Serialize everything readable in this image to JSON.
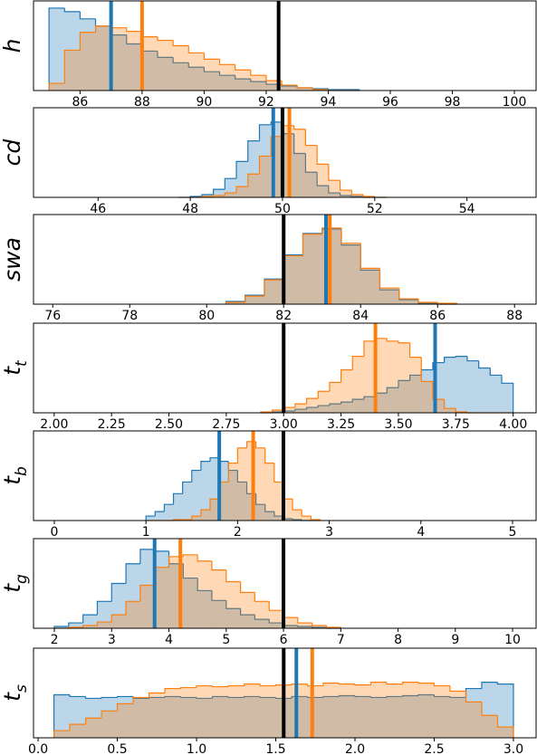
{
  "chart_data": [
    {
      "type": "histogram",
      "ylabel": "h",
      "xlim": [
        84.5,
        100.7
      ],
      "ylim": [
        0,
        100
      ],
      "xticks": [
        86,
        88,
        90,
        92,
        94,
        96,
        98,
        100
      ],
      "bins": [
        85,
        85.5,
        86,
        86.5,
        87,
        87.5,
        88,
        88.5,
        89,
        89.5,
        90,
        90.5,
        91,
        91.5,
        92,
        92.5,
        93,
        93.5,
        94,
        94.5,
        95
      ],
      "series": [
        {
          "color": "#1f77b4",
          "values": [
            92,
            88,
            80,
            72,
            62,
            52,
            44,
            37,
            31,
            26,
            21,
            17,
            13,
            10,
            7,
            5,
            3,
            2,
            1,
            1
          ]
        },
        {
          "color": "#ff7f0e",
          "values": [
            8,
            45,
            65,
            72,
            70,
            66,
            60,
            56,
            50,
            42,
            35,
            29,
            23,
            17,
            11,
            6,
            3,
            1,
            0,
            0
          ]
        }
      ],
      "vlines": [
        {
          "x": 87.0,
          "color": "#1f77b4"
        },
        {
          "x": 88.0,
          "color": "#ff7f0e"
        },
        {
          "x": 92.4,
          "color": "#000000"
        }
      ]
    },
    {
      "type": "histogram",
      "ylabel": "cd",
      "xlim": [
        44.6,
        55.5
      ],
      "ylim": [
        0,
        100
      ],
      "xticks": [
        46,
        48,
        50,
        52,
        54
      ],
      "bins": [
        47.75,
        48,
        48.25,
        48.5,
        48.75,
        49,
        49.25,
        49.5,
        49.75,
        50,
        50.25,
        50.5,
        50.75,
        51,
        51.25,
        51.5,
        51.75,
        52,
        52.25
      ],
      "series": [
        {
          "color": "#1f77b4",
          "values": [
            0,
            1,
            3,
            9,
            21,
            40,
            63,
            81,
            84,
            71,
            49,
            28,
            13,
            5,
            2,
            1,
            0,
            0
          ]
        },
        {
          "color": "#ff7f0e",
          "values": [
            0,
            0,
            1,
            2,
            5,
            12,
            26,
            46,
            68,
            80,
            76,
            58,
            37,
            19,
            8,
            3,
            1,
            0
          ]
        }
      ],
      "vlines": [
        {
          "x": 49.8,
          "color": "#1f77b4"
        },
        {
          "x": 50.15,
          "color": "#ff7f0e"
        },
        {
          "x": 50.0,
          "color": "#000000"
        }
      ]
    },
    {
      "type": "histogram",
      "ylabel": "swa",
      "xlim": [
        75.5,
        88.56
      ],
      "ylim": [
        0,
        100
      ],
      "xticks": [
        76,
        78,
        80,
        82,
        84,
        86,
        88
      ],
      "bins": [
        80.5,
        81,
        81.5,
        82,
        82.5,
        83,
        83.5,
        84,
        84.5,
        85,
        85.5,
        86,
        86.5
      ],
      "series": [
        {
          "color": "#1f77b4",
          "values": [
            3,
            10,
            28,
            55,
            79,
            84,
            66,
            38,
            16,
            5,
            1,
            0
          ]
        },
        {
          "color": "#ff7f0e",
          "values": [
            2,
            9,
            27,
            54,
            78,
            85,
            68,
            40,
            18,
            6,
            2,
            1
          ]
        }
      ],
      "vlines": [
        {
          "x": 82.0,
          "color": "#000000"
        },
        {
          "x": 83.1,
          "color": "#1f77b4"
        },
        {
          "x": 83.2,
          "color": "#ff7f0e"
        }
      ]
    },
    {
      "type": "histogram",
      "ylabel": "t",
      "ylabel_subscript": "t",
      "xlim": [
        1.91,
        4.1
      ],
      "ylim": [
        0,
        100
      ],
      "xticks": [
        {
          "value": 2,
          "label": "2.00"
        },
        2.25,
        {
          "value": 2.5,
          "label": "2.50"
        },
        2.75,
        {
          "value": 3,
          "label": "3.00"
        },
        3.25,
        {
          "value": 3.5,
          "label": "3.50"
        },
        3.75,
        {
          "value": 4,
          "label": "4.00"
        }
      ],
      "bins": [
        2.9,
        2.95,
        3.0,
        3.05,
        3.1,
        3.15,
        3.2,
        3.25,
        3.3,
        3.35,
        3.4,
        3.45,
        3.5,
        3.55,
        3.6,
        3.65,
        3.7,
        3.75,
        3.8,
        3.85,
        3.9,
        3.95,
        4.0
      ],
      "series": [
        {
          "color": "#1f77b4",
          "values": [
            0,
            1,
            2,
            4,
            6,
            8,
            10,
            12,
            15,
            18,
            22,
            28,
            36,
            42,
            48,
            56,
            62,
            63,
            58,
            50,
            42,
            33
          ]
        },
        {
          "color": "#ff7f0e",
          "values": [
            1,
            3,
            6,
            10,
            16,
            24,
            34,
            48,
            63,
            80,
            83,
            80,
            78,
            62,
            35,
            15,
            5,
            1,
            0,
            0,
            0,
            0
          ]
        }
      ],
      "vlines": [
        {
          "x": 3.0,
          "color": "#000000"
        },
        {
          "x": 3.4,
          "color": "#ff7f0e"
        },
        {
          "x": 3.66,
          "color": "#1f77b4"
        }
      ]
    },
    {
      "type": "histogram",
      "ylabel": "t",
      "ylabel_subscript": "b",
      "xlim": [
        -0.227,
        5.257
      ],
      "ylim": [
        0,
        100
      ],
      "xticks": [
        0,
        1,
        2,
        3,
        4,
        5
      ],
      "bins": [
        1.0,
        1.1,
        1.2,
        1.3,
        1.4,
        1.5,
        1.6,
        1.7,
        1.8,
        1.9,
        2.0,
        2.1,
        2.2,
        2.3,
        2.4,
        2.5,
        2.6,
        2.7,
        2.8,
        2.9
      ],
      "series": [
        {
          "color": "#1f77b4",
          "values": [
            5,
            10,
            18,
            30,
            43,
            56,
            66,
            70,
            66,
            56,
            43,
            30,
            18,
            10,
            5,
            2,
            1,
            0,
            0
          ]
        },
        {
          "color": "#ff7f0e",
          "values": [
            0,
            0,
            0,
            1,
            1,
            5,
            12,
            24,
            43,
            64,
            81,
            88,
            81,
            64,
            43,
            24,
            12,
            5,
            1
          ]
        }
      ],
      "vlines": [
        {
          "x": 1.8,
          "color": "#1f77b4"
        },
        {
          "x": 2.17,
          "color": "#ff7f0e"
        },
        {
          "x": 2.5,
          "color": "#000000"
        }
      ]
    },
    {
      "type": "histogram",
      "ylabel": "t",
      "ylabel_subscript": "g",
      "xlim": [
        1.636,
        10.41
      ],
      "ylim": [
        0,
        100
      ],
      "xticks": [
        2,
        3,
        4,
        5,
        6,
        7,
        8,
        9,
        10
      ],
      "bins": [
        2.0,
        2.25,
        2.5,
        2.75,
        3.0,
        3.25,
        3.5,
        3.75,
        4.0,
        4.25,
        4.5,
        4.75,
        5.0,
        5.25,
        5.5,
        5.75,
        6.0,
        6.25,
        6.5,
        6.75,
        7.0
      ],
      "series": [
        {
          "color": "#1f77b4",
          "values": [
            2,
            6,
            15,
            30,
            50,
            72,
            88,
            86,
            72,
            56,
            42,
            31,
            22,
            15,
            10,
            6,
            3,
            2,
            1,
            0
          ]
        },
        {
          "color": "#ff7f0e",
          "values": [
            0,
            1,
            3,
            7,
            15,
            30,
            48,
            68,
            80,
            82,
            75,
            65,
            52,
            40,
            30,
            20,
            12,
            6,
            3,
            1
          ]
        }
      ],
      "vlines": [
        {
          "x": 3.75,
          "color": "#1f77b4"
        },
        {
          "x": 4.2,
          "color": "#ff7f0e"
        },
        {
          "x": 6.0,
          "color": "#000000"
        }
      ]
    },
    {
      "type": "histogram",
      "ylabel": "t",
      "ylabel_subscript": "s",
      "xlim": [
        -0.029,
        3.143
      ],
      "ylim": [
        0,
        100
      ],
      "xticks": [
        {
          "value": 0,
          "label": "0.0"
        },
        0.5,
        {
          "value": 1,
          "label": "1.0"
        },
        1.5,
        {
          "value": 2,
          "label": "2.0"
        },
        2.5,
        {
          "value": 3,
          "label": "3.0"
        }
      ],
      "bins": [
        0.1,
        0.2,
        0.3,
        0.4,
        0.5,
        0.6,
        0.7,
        0.8,
        0.9,
        1.0,
        1.1,
        1.2,
        1.3,
        1.4,
        1.5,
        1.6,
        1.7,
        1.8,
        1.9,
        2.0,
        2.1,
        2.2,
        2.3,
        2.4,
        2.5,
        2.6,
        2.7,
        2.8,
        2.9,
        3.0
      ],
      "series": [
        {
          "color": "#1f77b4",
          "values": [
            48,
            46,
            44,
            45,
            46,
            44,
            45,
            46,
            45,
            44,
            46,
            45,
            46,
            45,
            44,
            46,
            45,
            46,
            47,
            46,
            45,
            46,
            47,
            48,
            46,
            45,
            55,
            62,
            60
          ]
        },
        {
          "color": "#ff7f0e",
          "values": [
            8,
            15,
            22,
            30,
            38,
            45,
            50,
            55,
            56,
            58,
            57,
            58,
            60,
            58,
            59,
            60,
            58,
            61,
            60,
            59,
            62,
            60,
            62,
            61,
            58,
            52,
            40,
            25,
            12
          ]
        }
      ],
      "vlines": [
        {
          "x": 1.55,
          "color": "#000000"
        },
        {
          "x": 1.63,
          "color": "#1f77b4"
        },
        {
          "x": 1.73,
          "color": "#ff7f0e"
        }
      ]
    }
  ]
}
